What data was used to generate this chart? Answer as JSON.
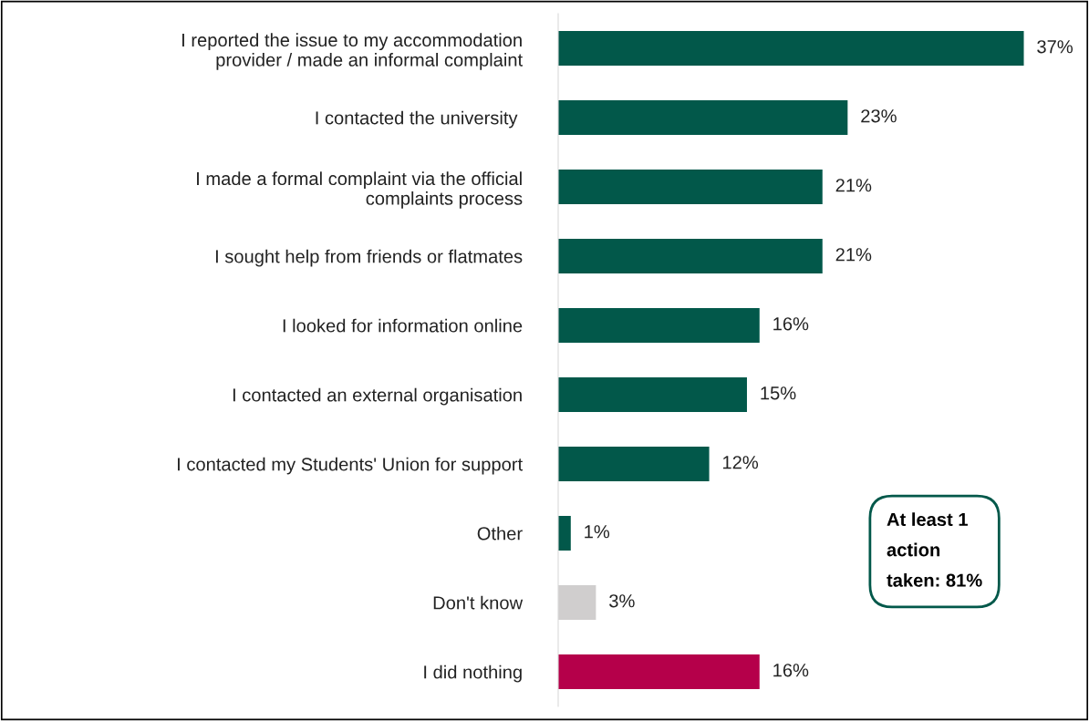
{
  "chart_data": {
    "type": "bar",
    "orientation": "horizontal",
    "categories": [
      "I reported the issue to my accommodation\nprovider / made an informal complaint",
      "I contacted the university ",
      "I made a formal complaint via the official\ncomplaints process",
      "I sought help from friends or flatmates",
      "I looked for information online",
      "I contacted an external organisation",
      "I contacted my Students' Union for support",
      "Other",
      "Don't know",
      "I did nothing"
    ],
    "values": [
      37,
      23,
      21,
      21,
      16,
      15,
      12,
      1,
      3,
      16
    ],
    "value_labels": [
      "37%",
      "23%",
      "21%",
      "21%",
      "16%",
      "15%",
      "12%",
      "1%",
      "3%",
      "16%"
    ],
    "colors": [
      "#02584a",
      "#02584a",
      "#02584a",
      "#02584a",
      "#02584a",
      "#02584a",
      "#02584a",
      "#02584a",
      "#d0cece",
      "#b5004a"
    ],
    "annotations": [
      "At least 1\naction\ntaken: 81%"
    ],
    "grid": false,
    "legend": false
  }
}
